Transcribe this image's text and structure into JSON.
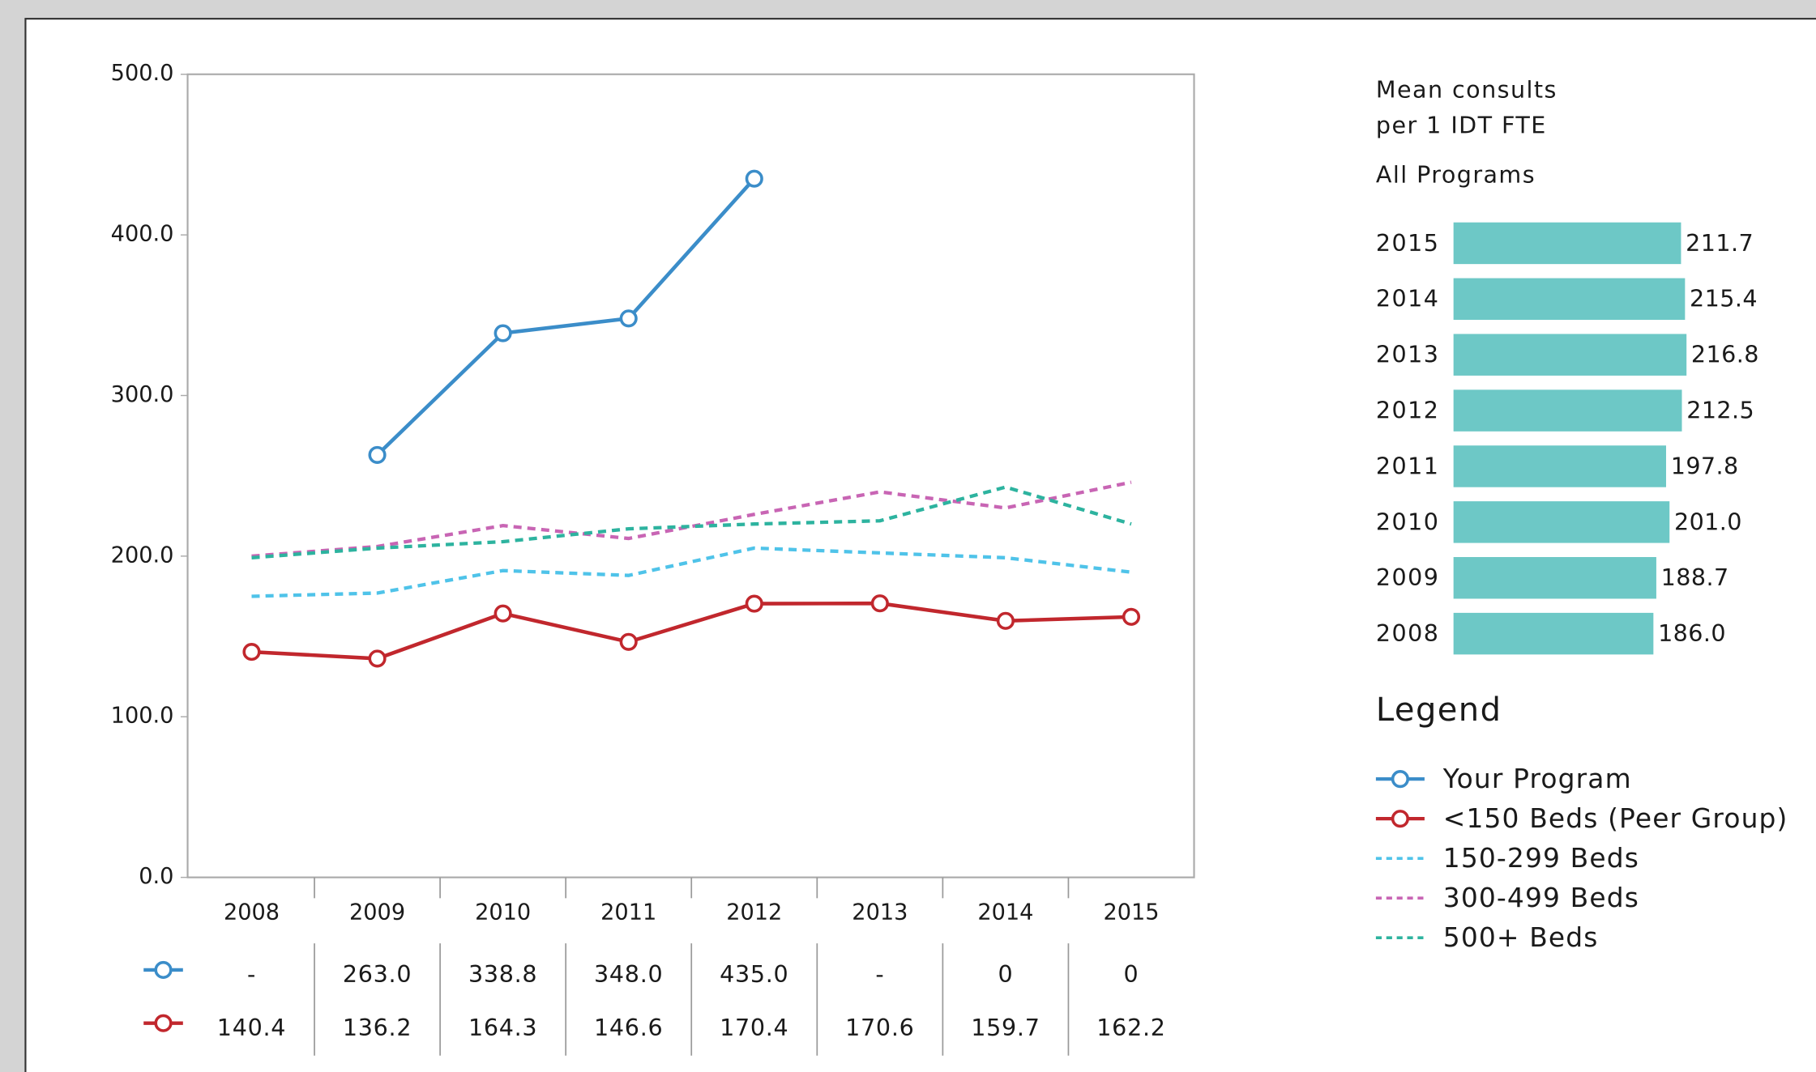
{
  "chart_data": [
    {
      "type": "line",
      "categories": [
        "2008",
        "2009",
        "2010",
        "2011",
        "2012",
        "2013",
        "2014",
        "2015"
      ],
      "series": [
        {
          "name": "Your Program",
          "color": "#3b8dc9",
          "dashed": false,
          "markers": true,
          "values": [
            null,
            263.0,
            338.8,
            348.0,
            435.0,
            null,
            null,
            null
          ],
          "value_labels": [
            "-",
            "263.0",
            "338.8",
            "348.0",
            "435.0",
            "-",
            "0",
            "0"
          ]
        },
        {
          "name": "<150 Beds (Peer Group)",
          "color": "#c1272d",
          "dashed": false,
          "markers": true,
          "values": [
            140.4,
            136.2,
            164.3,
            146.6,
            170.4,
            170.6,
            159.7,
            162.2
          ],
          "value_labels": [
            "140.4",
            "136.2",
            "164.3",
            "146.6",
            "170.4",
            "170.6",
            "159.7",
            "162.2"
          ]
        },
        {
          "name": "150-299 Beds",
          "color": "#4fc3e9",
          "dashed": true,
          "markers": false,
          "values": [
            175,
            177,
            191,
            188,
            205,
            202,
            199,
            190
          ]
        },
        {
          "name": "300-499 Beds",
          "color": "#c865b4",
          "dashed": true,
          "markers": false,
          "values": [
            200,
            206,
            219,
            211,
            226,
            240,
            230,
            246
          ]
        },
        {
          "name": "500+ Beds",
          "color": "#2db39f",
          "dashed": true,
          "markers": false,
          "values": [
            199,
            205,
            209,
            217,
            220,
            222,
            243,
            220
          ]
        }
      ],
      "ylim": [
        0,
        500
      ],
      "yticks": [
        {
          "value": 0,
          "label": "0.0"
        },
        {
          "value": 100,
          "label": "100.0"
        },
        {
          "value": 200,
          "label": "200.0"
        },
        {
          "value": 300,
          "label": "300.0"
        },
        {
          "value": 400,
          "label": "400.0"
        },
        {
          "value": 500,
          "label": "500.0"
        }
      ],
      "legend_title": "Legend"
    },
    {
      "type": "hbar",
      "title": "Mean consults per 1 IDT FTE",
      "subtitle": "All Programs",
      "categories": [
        "2015",
        "2014",
        "2013",
        "2012",
        "2011",
        "2010",
        "2009",
        "2008"
      ],
      "values": [
        211.7,
        215.4,
        216.8,
        212.5,
        197.8,
        201.0,
        188.7,
        186.0
      ],
      "value_labels": [
        "211.7",
        "215.4",
        "216.8",
        "212.5",
        "197.8",
        "201.0",
        "188.7",
        "186.0"
      ],
      "color": "#6dc8c6"
    }
  ]
}
